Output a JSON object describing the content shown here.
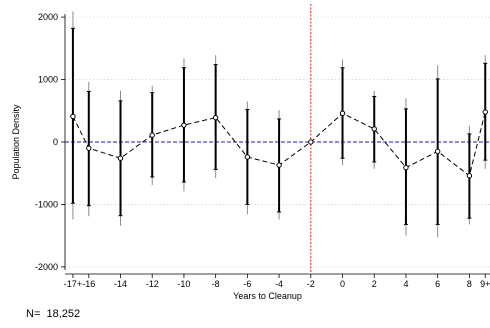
{
  "chart_data": {
    "type": "line",
    "title": "",
    "xlabel": "Years to Cleanup",
    "ylabel": "Population Density",
    "x": [
      -17,
      -16,
      -14,
      -12,
      -10,
      -8,
      -6,
      -4,
      -2,
      0,
      2,
      4,
      6,
      8,
      9
    ],
    "x_tick_labels": [
      "-17+",
      "-16",
      "-14",
      "-12",
      "-10",
      "-8",
      "-6",
      "-4",
      "-2",
      "0",
      "2",
      "4",
      "6",
      "8",
      "9+"
    ],
    "y_ticks": [
      -2000,
      -1000,
      0,
      1000,
      2000
    ],
    "ylim": [
      -2050,
      2050
    ],
    "xlim": [
      -17.5,
      9.3
    ],
    "grid": "horizontal dotted",
    "reference_lines": {
      "y": 0,
      "x": -2
    },
    "series": [
      {
        "estimate": [
          410,
          -100,
          -260,
          110,
          270,
          390,
          -240,
          -370,
          0,
          460,
          210,
          -410,
          -150,
          -540,
          480
        ],
        "ci_thick_lower": [
          -980,
          -1020,
          -1180,
          -560,
          -640,
          -440,
          -1000,
          -1120,
          0,
          -260,
          -320,
          -1320,
          -1320,
          -1220,
          -290
        ],
        "ci_thick_upper": [
          1820,
          810,
          660,
          790,
          1190,
          1240,
          520,
          370,
          0,
          1190,
          730,
          530,
          1010,
          130,
          1260
        ],
        "ci_thin_lower": [
          -1240,
          -1190,
          -1340,
          -690,
          -790,
          -580,
          -1160,
          -1240,
          0,
          -370,
          -430,
          -1500,
          -1530,
          -1320,
          -430
        ],
        "ci_thin_upper": [
          2090,
          960,
          820,
          900,
          1340,
          1390,
          650,
          510,
          0,
          1320,
          820,
          700,
          1230,
          260,
          1390
        ]
      }
    ]
  },
  "note": {
    "prefix": "N=",
    "value": "18,252"
  },
  "colors": {
    "zero_line": "#1f1fa8",
    "event_line": "#e02020",
    "series": "#000000",
    "grid": "#d9d9d9"
  }
}
